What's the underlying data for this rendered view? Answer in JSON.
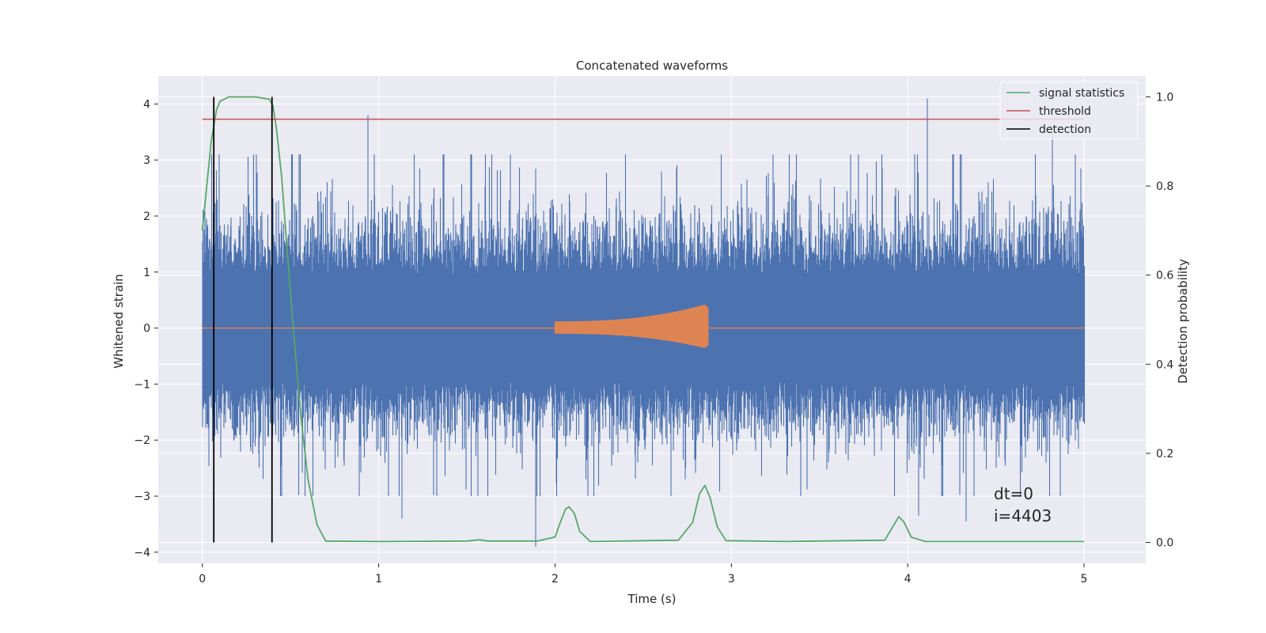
{
  "chart_data": {
    "type": "line",
    "title": "Concatenated waveforms",
    "xlabel": "Time (s)",
    "ylabel": "Whitened strain",
    "y2label": "Detection probability",
    "xlim": [
      -0.25,
      5.35
    ],
    "ylim": [
      -4.2,
      4.5
    ],
    "y2lim": [
      -0.047,
      1.047
    ],
    "xticks": [
      0,
      1,
      2,
      3,
      4,
      5
    ],
    "yticks": [
      -4,
      -3,
      -2,
      -1,
      0,
      1,
      2,
      3,
      4
    ],
    "y2ticks": [
      0.0,
      0.2,
      0.4,
      0.6,
      0.8,
      1.0
    ],
    "xtick_labels": [
      "0",
      "1",
      "2",
      "3",
      "4",
      "5"
    ],
    "ytick_labels": [
      "−4",
      "−3",
      "−2",
      "−1",
      "0",
      "1",
      "2",
      "3",
      "4"
    ],
    "y2tick_labels": [
      "0.0",
      "0.2",
      "0.4",
      "0.6",
      "0.8",
      "1.0"
    ],
    "grid": true,
    "legend_position": "top-right",
    "colors": {
      "background": "#eaeaf2",
      "grid": "#ffffff",
      "strain": "#4c72b0",
      "injection": "#dd8452",
      "signal": "#55a868",
      "threshold": "#c44e52",
      "detection": "#000000"
    },
    "strain_series": {
      "x_range": [
        0,
        5
      ],
      "approx_amplitude_range": [
        -3.9,
        4.1
      ],
      "outlier_peaks": [
        {
          "x": 0.94,
          "y": 3.8
        },
        {
          "x": 1.89,
          "y": -3.9
        },
        {
          "x": 4.11,
          "y": 4.1
        },
        {
          "x": 4.33,
          "y": -3.45
        },
        {
          "x": 4.82,
          "y": 3.55
        },
        {
          "x": 1.13,
          "y": -3.4
        },
        {
          "x": 4.06,
          "y": -3.35
        }
      ]
    },
    "injection_series": {
      "x_range": [
        2.0,
        2.87
      ],
      "start_amplitude": 0.12,
      "peak_amplitude": 0.42,
      "peak_time": 2.85
    },
    "signal_statistics": {
      "x": [
        0.0,
        0.02,
        0.05,
        0.08,
        0.1,
        0.15,
        0.2,
        0.3,
        0.38,
        0.4,
        0.42,
        0.45,
        0.48,
        0.52,
        0.56,
        0.6,
        0.65,
        0.7,
        1.0,
        1.5,
        1.57,
        1.62,
        1.9,
        2.0,
        2.03,
        2.06,
        2.08,
        2.11,
        2.14,
        2.2,
        2.7,
        2.78,
        2.82,
        2.85,
        2.88,
        2.92,
        2.97,
        3.3,
        3.87,
        3.92,
        3.95,
        3.98,
        4.02,
        4.1,
        5.0
      ],
      "y": [
        0.7,
        0.78,
        0.9,
        0.97,
        0.99,
        1.0,
        1.0,
        1.0,
        0.995,
        0.98,
        0.93,
        0.82,
        0.66,
        0.46,
        0.28,
        0.14,
        0.04,
        0.003,
        0.002,
        0.003,
        0.006,
        0.003,
        0.003,
        0.012,
        0.045,
        0.075,
        0.08,
        0.065,
        0.025,
        0.002,
        0.005,
        0.045,
        0.11,
        0.128,
        0.1,
        0.035,
        0.004,
        0.002,
        0.005,
        0.038,
        0.058,
        0.045,
        0.012,
        0.002,
        0.002
      ]
    },
    "threshold": {
      "x": [
        0,
        5
      ],
      "y2": 0.95
    },
    "detections": [
      0.065,
      0.395
    ],
    "detection_y2_range": [
      0.0,
      1.0
    ],
    "legend": [
      {
        "label": "signal statistics",
        "color": "#55a868"
      },
      {
        "label": "threshold",
        "color": "#c44e52"
      },
      {
        "label": "detection",
        "color": "#000000"
      }
    ],
    "annotation": {
      "lines": [
        "dt=0",
        "i=4403"
      ],
      "x": 4.5,
      "y": -3.3
    }
  }
}
